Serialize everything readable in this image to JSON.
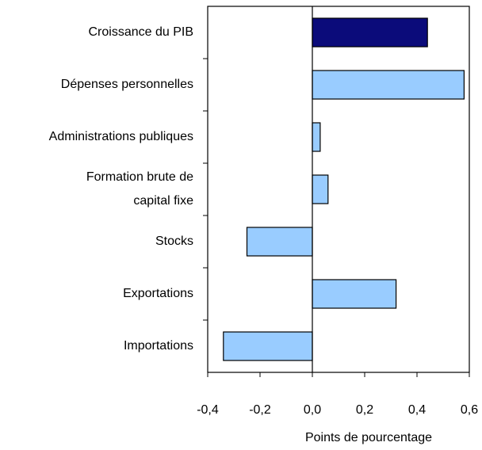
{
  "chart_data": {
    "type": "bar",
    "orientation": "horizontal",
    "categories": [
      "Croissance du PIB",
      "Dépenses personnelles",
      "Administrations publiques",
      "Formation brute de\ncapital fixe",
      "Stocks",
      "Exportations",
      "Importations"
    ],
    "values": [
      0.44,
      0.58,
      0.03,
      0.06,
      -0.25,
      0.32,
      -0.34
    ],
    "colors": [
      "#0b0b7a",
      "#99ccff",
      "#99ccff",
      "#99ccff",
      "#99ccff",
      "#99ccff",
      "#99ccff"
    ],
    "xlabel": "Points de pourcentage",
    "xlim": [
      -0.4,
      0.6
    ],
    "xticks": [
      {
        "value": -0.4,
        "label": "-0,4"
      },
      {
        "value": -0.2,
        "label": "-0,2"
      },
      {
        "value": 0,
        "label": "0,0"
      },
      {
        "value": 0.2,
        "label": "0,2"
      },
      {
        "value": 0.4,
        "label": "0,4"
      },
      {
        "value": 0.6,
        "label": "0,6"
      }
    ]
  }
}
